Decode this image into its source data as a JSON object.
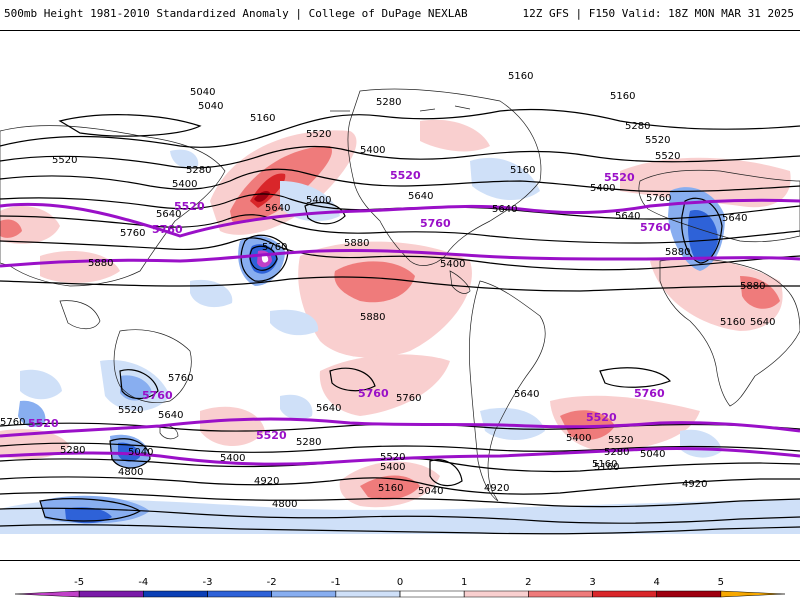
{
  "header": {
    "left": "500mb Height 1981-2010 Standardized Anomaly | College of DuPage NEXLAB",
    "right": "12Z GFS | F150 Valid: 18Z MON MAR 31 2025"
  },
  "colors": {
    "purple_contour": "#9a10c8",
    "black_contour": "#000000",
    "coast": "#222222"
  },
  "contour_labels_black": [
    "5160",
    "5040",
    "5040",
    "5280",
    "5160",
    "5520",
    "5400",
    "5520",
    "5280",
    "5400",
    "5640",
    "5160",
    "5640",
    "5400",
    "5280",
    "5640",
    "5520",
    "5400",
    "5520",
    "5160",
    "5640",
    "5640",
    "5880",
    "5760",
    "5760",
    "5880",
    "5880",
    "5760",
    "5640",
    "5880",
    "5880",
    "5160",
    "5640",
    "5400",
    "5760",
    "5640",
    "5520",
    "5040",
    "5280",
    "5400",
    "5280",
    "5160",
    "5040",
    "4920",
    "5040",
    "5160",
    "4920",
    "4800",
    "4800",
    "5400",
    "5520",
    "5640",
    "5760",
    "5640",
    "5520",
    "5400",
    "5160",
    "5280",
    "4920",
    "5760"
  ],
  "contour_labels_purple": [
    "5520",
    "5760",
    "5520",
    "5760",
    "5520",
    "5760",
    "5760",
    "5520",
    "5520",
    "5520",
    "5760",
    "5760"
  ],
  "colorbar": {
    "ticks": [
      "-5",
      "-4",
      "-3",
      "-2",
      "-1",
      "0",
      "1",
      "2",
      "3",
      "4",
      "5"
    ],
    "colors": [
      "#c040c8",
      "#7a1aa8",
      "#0b3fb5",
      "#2e62d8",
      "#88aef0",
      "#cfe0f8",
      "#ffffff",
      "#f9cfcf",
      "#ef7b7b",
      "#d9262a",
      "#9e0010",
      "#f7a800"
    ]
  }
}
